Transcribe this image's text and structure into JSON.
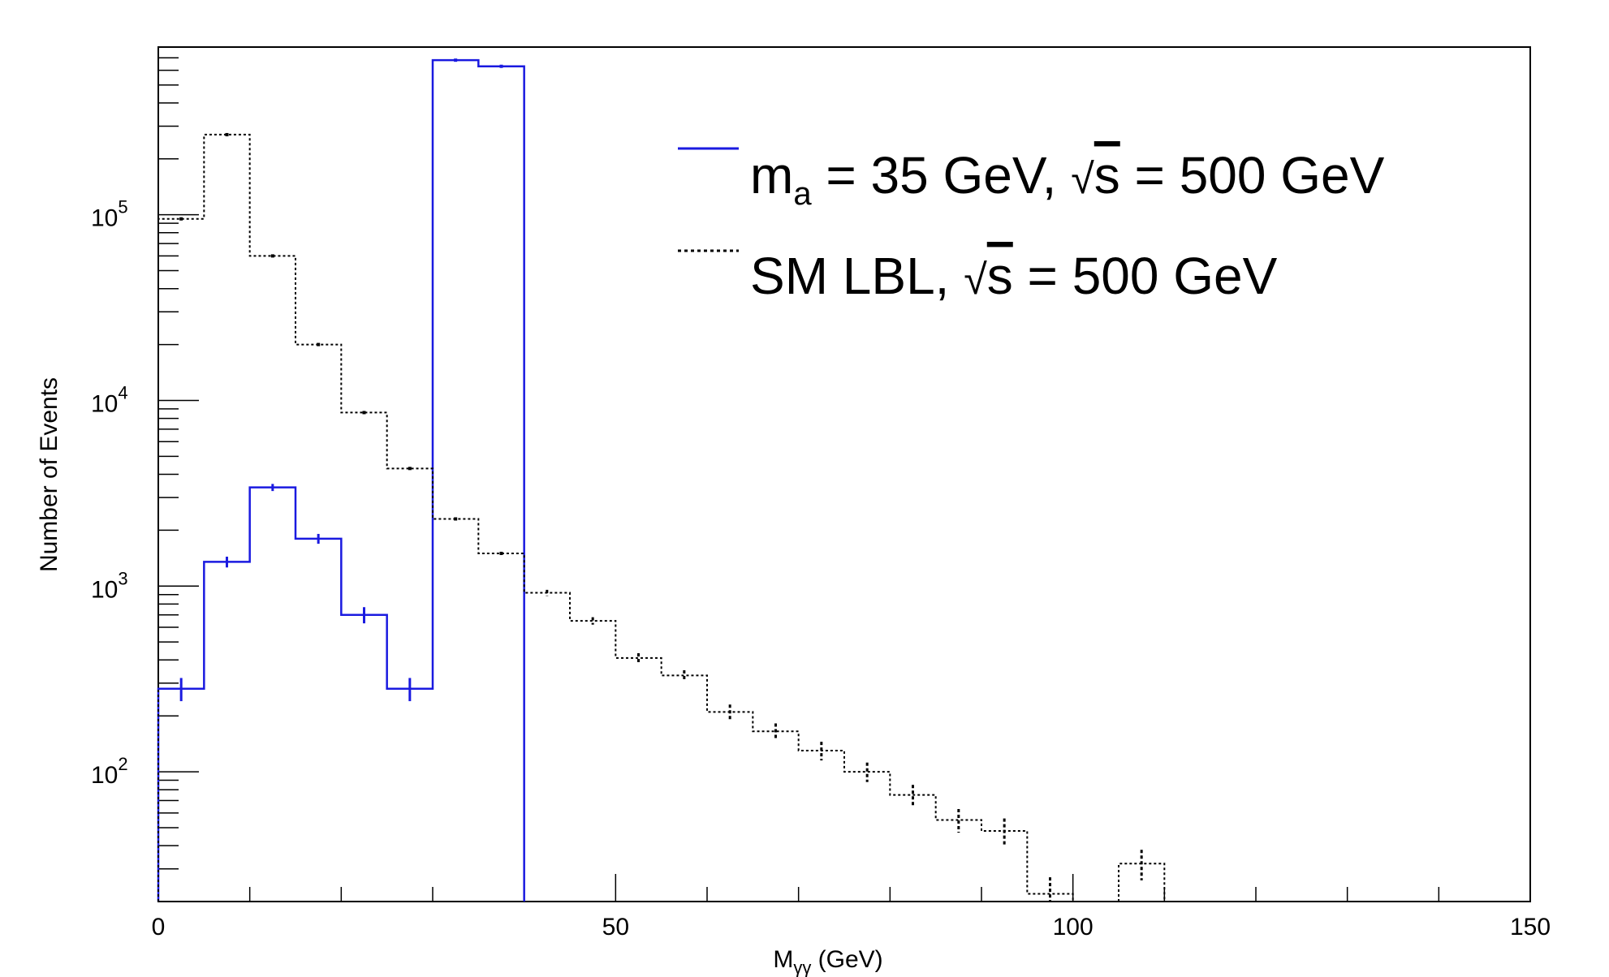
{
  "chart_data": {
    "type": "step-histogram",
    "xlabel": "M",
    "xlabel_sub": "γγ",
    "xlabel_unit": " (GeV)",
    "ylabel": "Number of Events",
    "xlim": [
      0,
      150
    ],
    "ylim": [
      20,
      800000
    ],
    "log_y": true,
    "bin_width": 5,
    "x_ticks": [
      0,
      50,
      100,
      150
    ],
    "y_ticks": [
      {
        "value": 100,
        "base": "10",
        "exp": "2"
      },
      {
        "value": 1000,
        "base": "10",
        "exp": "3"
      },
      {
        "value": 10000,
        "base": "10",
        "exp": "4"
      },
      {
        "value": 100000,
        "base": "10",
        "exp": "5"
      }
    ],
    "legend_position": "top-right",
    "series": [
      {
        "key": "alp",
        "legend": {
          "m": "m",
          "sub": "a",
          "rest": " = 35 GeV,  ",
          "sqrt_s": "s",
          "tail": " = 500 GeV"
        },
        "color": "#1a1ae0",
        "style": "solid",
        "bins": [
          {
            "x0": 0,
            "x1": 5,
            "y": 280,
            "err": 40
          },
          {
            "x0": 5,
            "x1": 10,
            "y": 1350,
            "err": 90
          },
          {
            "x0": 10,
            "x1": 15,
            "y": 3400,
            "err": 150
          },
          {
            "x0": 15,
            "x1": 20,
            "y": 1800,
            "err": 110
          },
          {
            "x0": 20,
            "x1": 25,
            "y": 700,
            "err": 70
          },
          {
            "x0": 25,
            "x1": 30,
            "y": 280,
            "err": 40
          },
          {
            "x0": 30,
            "x1": 35,
            "y": 680000,
            "err": 0
          },
          {
            "x0": 35,
            "x1": 40,
            "y": 630000,
            "err": 0
          }
        ]
      },
      {
        "key": "sm",
        "legend": {
          "m": "SM LBL,  ",
          "sub": "",
          "rest": "",
          "sqrt_s": "s",
          "tail": " = 500 GeV"
        },
        "color": "#000000",
        "style": "dotted",
        "bins": [
          {
            "x0": 0,
            "x1": 5,
            "y": 95000,
            "err": 0
          },
          {
            "x0": 5,
            "x1": 10,
            "y": 270000,
            "err": 0
          },
          {
            "x0": 10,
            "x1": 15,
            "y": 60000,
            "err": 0
          },
          {
            "x0": 15,
            "x1": 20,
            "y": 20000,
            "err": 0
          },
          {
            "x0": 20,
            "x1": 25,
            "y": 8600,
            "err": 0
          },
          {
            "x0": 25,
            "x1": 30,
            "y": 4300,
            "err": 0
          },
          {
            "x0": 30,
            "x1": 35,
            "y": 2300,
            "err": 0
          },
          {
            "x0": 35,
            "x1": 40,
            "y": 1500,
            "err": 0
          },
          {
            "x0": 40,
            "x1": 45,
            "y": 920,
            "err": 35
          },
          {
            "x0": 45,
            "x1": 50,
            "y": 650,
            "err": 30
          },
          {
            "x0": 50,
            "x1": 55,
            "y": 410,
            "err": 25
          },
          {
            "x0": 55,
            "x1": 60,
            "y": 330,
            "err": 22
          },
          {
            "x0": 60,
            "x1": 65,
            "y": 210,
            "err": 20
          },
          {
            "x0": 65,
            "x1": 70,
            "y": 165,
            "err": 17
          },
          {
            "x0": 70,
            "x1": 75,
            "y": 130,
            "err": 15
          },
          {
            "x0": 75,
            "x1": 80,
            "y": 100,
            "err": 12
          },
          {
            "x0": 80,
            "x1": 85,
            "y": 75,
            "err": 10
          },
          {
            "x0": 85,
            "x1": 90,
            "y": 55,
            "err": 8
          },
          {
            "x0": 90,
            "x1": 95,
            "y": 48,
            "err": 8
          },
          {
            "x0": 95,
            "x1": 100,
            "y": 22,
            "err": 5
          },
          {
            "x0": 105,
            "x1": 110,
            "y": 32,
            "err": 6
          }
        ]
      }
    ]
  }
}
